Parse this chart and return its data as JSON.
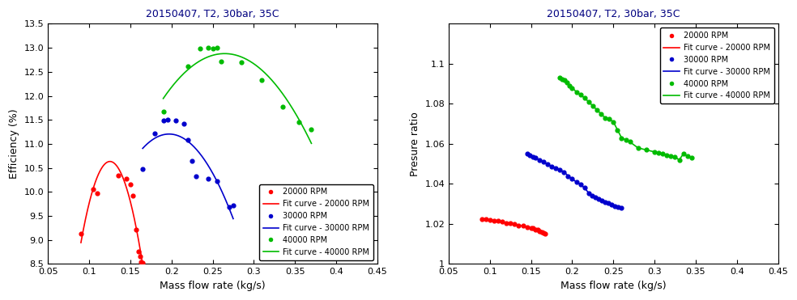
{
  "title": "20150407, T2, 30bar, 35C",
  "xlabel": "Mass flow rate (kg/s)",
  "ylabel_left": "Efficiency (%)",
  "ylabel_right": "Presure ratio",
  "xlim": [
    0.05,
    0.45
  ],
  "ylim_left": [
    8.5,
    13.5
  ],
  "ylim_right": [
    1.0,
    1.12
  ],
  "xticks": [
    0.05,
    0.1,
    0.15,
    0.2,
    0.25,
    0.3,
    0.35,
    0.4,
    0.45
  ],
  "yticks_left": [
    8.5,
    9.0,
    9.5,
    10.0,
    10.5,
    11.0,
    11.5,
    12.0,
    12.5,
    13.0,
    13.5
  ],
  "yticks_right": [
    1.0,
    1.02,
    1.04,
    1.06,
    1.08,
    1.1
  ],
  "title_color": "#000080",
  "colors": {
    "rpm20000": "#ff0000",
    "rpm30000": "#0000cc",
    "rpm40000": "#00bb00"
  },
  "legend_entries": [
    "20000 RPM",
    "Fit curve - 20000 RPM",
    "30000 RPM",
    "Fit curve - 30000 RPM",
    "40000 RPM",
    "Fit curve - 40000 RPM"
  ],
  "eff_20000_x": [
    0.09,
    0.105,
    0.11,
    0.135,
    0.145,
    0.15,
    0.153,
    0.157,
    0.16,
    0.162,
    0.163,
    0.165
  ],
  "eff_20000_y": [
    9.13,
    10.06,
    9.98,
    10.35,
    10.27,
    10.16,
    9.93,
    9.21,
    8.76,
    8.66,
    8.55,
    8.53
  ],
  "eff_30000_x": [
    0.165,
    0.18,
    0.19,
    0.195,
    0.205,
    0.215,
    0.22,
    0.225,
    0.23,
    0.245,
    0.255,
    0.27,
    0.275
  ],
  "eff_30000_y": [
    10.47,
    11.22,
    11.48,
    11.5,
    11.48,
    11.42,
    11.08,
    10.64,
    10.33,
    10.28,
    10.22,
    9.68,
    9.72
  ],
  "eff_40000_x": [
    0.19,
    0.22,
    0.235,
    0.245,
    0.25,
    0.255,
    0.26,
    0.285,
    0.31,
    0.335,
    0.355,
    0.37
  ],
  "eff_40000_y": [
    11.67,
    12.62,
    12.98,
    13.0,
    12.98,
    13.0,
    12.71,
    12.7,
    12.33,
    11.78,
    11.46,
    11.3
  ],
  "pr_20000_x": [
    0.09,
    0.095,
    0.1,
    0.105,
    0.11,
    0.115,
    0.12,
    0.125,
    0.13,
    0.135,
    0.14,
    0.145,
    0.15,
    0.152,
    0.155,
    0.158,
    0.16,
    0.163,
    0.165,
    0.167
  ],
  "pr_20000_y": [
    1.0225,
    1.0223,
    1.022,
    1.0218,
    1.0215,
    1.021,
    1.0205,
    1.0202,
    1.0198,
    1.0193,
    1.019,
    1.0183,
    1.018,
    1.0178,
    1.0173,
    1.017,
    1.0165,
    1.016,
    1.0155,
    1.015
  ],
  "pr_30000_x": [
    0.145,
    0.148,
    0.152,
    0.155,
    0.16,
    0.165,
    0.17,
    0.175,
    0.18,
    0.185,
    0.19,
    0.195,
    0.2,
    0.205,
    0.21,
    0.215,
    0.22,
    0.224,
    0.228,
    0.232,
    0.236,
    0.24,
    0.244,
    0.248,
    0.252,
    0.256,
    0.26
  ],
  "pr_30000_y": [
    1.055,
    1.0543,
    1.0535,
    1.053,
    1.052,
    1.051,
    1.0498,
    1.0488,
    1.048,
    1.047,
    1.046,
    1.044,
    1.0425,
    1.041,
    1.0397,
    1.038,
    1.0355,
    1.034,
    1.0333,
    1.0325,
    1.0318,
    1.031,
    1.0305,
    1.0298,
    1.029,
    1.0285,
    1.028
  ],
  "pr_40000_x": [
    0.185,
    0.188,
    0.191,
    0.194,
    0.197,
    0.2,
    0.205,
    0.21,
    0.215,
    0.22,
    0.225,
    0.23,
    0.235,
    0.24,
    0.245,
    0.25,
    0.255,
    0.26,
    0.265,
    0.27,
    0.28,
    0.29,
    0.3,
    0.305,
    0.31,
    0.315,
    0.32,
    0.325,
    0.33,
    0.335,
    0.34,
    0.345
  ],
  "pr_40000_y": [
    1.093,
    1.0925,
    1.092,
    1.0905,
    1.089,
    1.088,
    1.086,
    1.0845,
    1.083,
    1.081,
    1.079,
    1.077,
    1.075,
    1.073,
    1.0725,
    1.071,
    1.067,
    1.063,
    1.062,
    1.061,
    1.058,
    1.057,
    1.056,
    1.0555,
    1.055,
    1.0545,
    1.054,
    1.0535,
    1.052,
    1.055,
    1.054,
    1.053
  ]
}
